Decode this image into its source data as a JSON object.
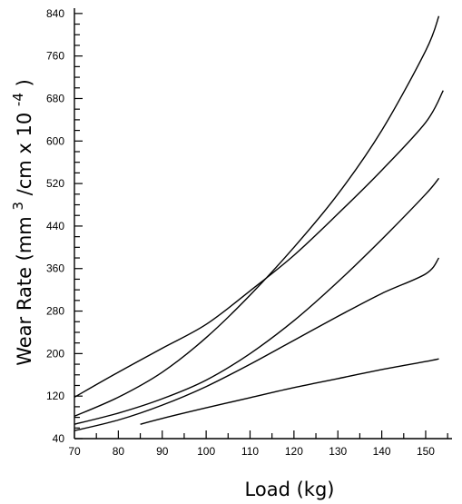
{
  "chart_data": {
    "type": "line",
    "title": "",
    "xlabel": "Load (kg)",
    "ylabel": "Wear Rate (mm 3 /cm x 10 -4 )",
    "ylabel_parts": {
      "base": "Wear Rate (mm ",
      "sup1": "3",
      "mid": " /cm x 10",
      "sup2": "-4",
      "end": " )"
    },
    "xlim": [
      70,
      156
    ],
    "ylim": [
      40,
      850
    ],
    "x_ticks": [
      "70",
      "80",
      "90",
      "100",
      "110",
      "120",
      "130",
      "140",
      "150"
    ],
    "y_ticks": [
      "40",
      "120",
      "200",
      "280",
      "360",
      "440",
      "520",
      "600",
      "680",
      "760",
      "840"
    ],
    "grid": false,
    "series": [
      {
        "x": [
          70,
          80,
          90,
          100,
          110,
          120,
          130,
          140,
          150,
          154
        ],
        "y": [
          118,
          165,
          210,
          255,
          318,
          385,
          463,
          545,
          635,
          695
        ]
      },
      {
        "x": [
          70,
          80,
          90,
          100,
          110,
          120,
          130,
          140,
          150,
          153
        ],
        "y": [
          82,
          118,
          165,
          230,
          310,
          400,
          500,
          620,
          770,
          835
        ]
      },
      {
        "x": [
          70,
          80,
          90,
          100,
          110,
          120,
          130,
          140,
          150,
          153
        ],
        "y": [
          67,
          88,
          115,
          150,
          200,
          262,
          335,
          415,
          500,
          530
        ]
      },
      {
        "x": [
          70,
          80,
          90,
          100,
          110,
          120,
          130,
          140,
          150,
          153
        ],
        "y": [
          55,
          75,
          103,
          138,
          180,
          225,
          270,
          313,
          350,
          380
        ]
      },
      {
        "x": [
          85,
          90,
          100,
          110,
          120,
          130,
          140,
          150,
          153
        ],
        "y": [
          67,
          78,
          98,
          117,
          136,
          153,
          170,
          185,
          190
        ]
      }
    ]
  }
}
